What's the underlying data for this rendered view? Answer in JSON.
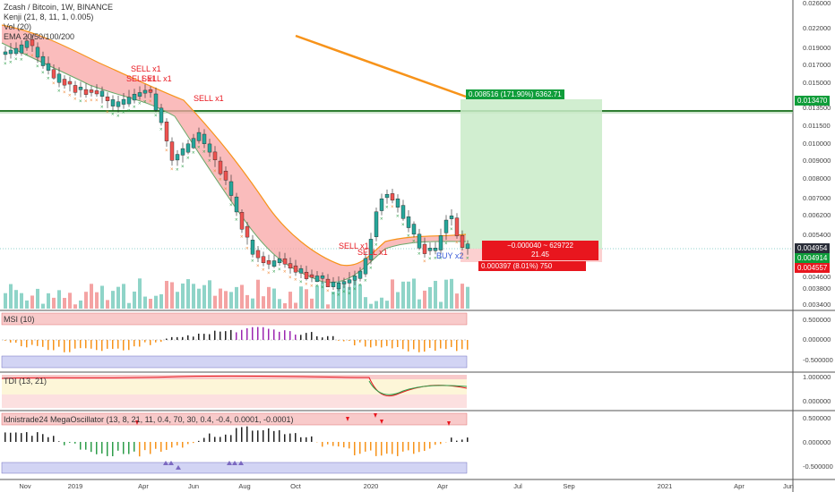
{
  "main_legend": {
    "title": "Zcash / Bitcoin, 1W, BINANCE",
    "lines": [
      "Kenji (21, 8, 11, 1, 0.005)",
      "Vol (20)",
      "EMA 20/50/100/200"
    ]
  },
  "price_axis": [
    "0.026000",
    "0.022000",
    "0.019000",
    "0.017000",
    "0.015000",
    "0.013500",
    "0.011500",
    "0.010000",
    "0.009000",
    "0.008000",
    "0.007000",
    "0.006200",
    "0.005400",
    "0.004600",
    "0.003800",
    "0.003400"
  ],
  "price_badges": {
    "top": "0.013470",
    "current": "0.004954",
    "low1": "0.004914",
    "low2": "0.004557",
    "colors": {
      "top": "#0f9d3a",
      "current": "#2a2e39",
      "low1": "#0f9d3a",
      "low2": "#e8161e"
    }
  },
  "trade_box": {
    "target_label": "0.008516 (171.90%) 6362.71",
    "middle_label": "−0.000040 ~ 629722",
    "middle_sub": "21.45",
    "stop_label": "0.000397 (8.01%) 750",
    "target_color": "#0f9d3a",
    "stop_color": "#e8161e"
  },
  "signals": [
    {
      "text": "SELL x1",
      "color": "#e8161e"
    },
    {
      "text": "SELL x1",
      "color": "#e8161e"
    },
    {
      "text": "SELL x1",
      "color": "#e8161e"
    },
    {
      "text": "SELL x1",
      "color": "#e8161e"
    },
    {
      "text": "SELL x1",
      "color": "#e8161e"
    },
    {
      "text": "SELL x1",
      "color": "#e8161e"
    },
    {
      "text": "BUY x2",
      "color": "#3a5bd9"
    }
  ],
  "msi": {
    "title": "MSI (10)",
    "axis": [
      "0.500000",
      "0.000000",
      "-0.500000"
    ]
  },
  "tdi": {
    "title": "TDI (13, 21)",
    "axis": [
      "1.000000",
      "0.000000"
    ]
  },
  "mega": {
    "title": "Idnistrade24 MegaOscillator (13, 8, 21, 11, 0.4, 70, 30, 0.4, -0.4, 0.0001, -0.0001)",
    "axis": [
      "0.500000",
      "0.000000",
      "-0.500000"
    ]
  },
  "time_axis": [
    "Nov",
    "2019",
    "Apr",
    "Jun",
    "Aug",
    "Oct",
    "2020",
    "Apr",
    "Jul",
    "Sep",
    "2021",
    "Apr",
    "Jun"
  ],
  "colors": {
    "up": "#26a69a",
    "down": "#ef5350",
    "ema": "#f7931a",
    "cloud": "#f8a5a5"
  }
}
